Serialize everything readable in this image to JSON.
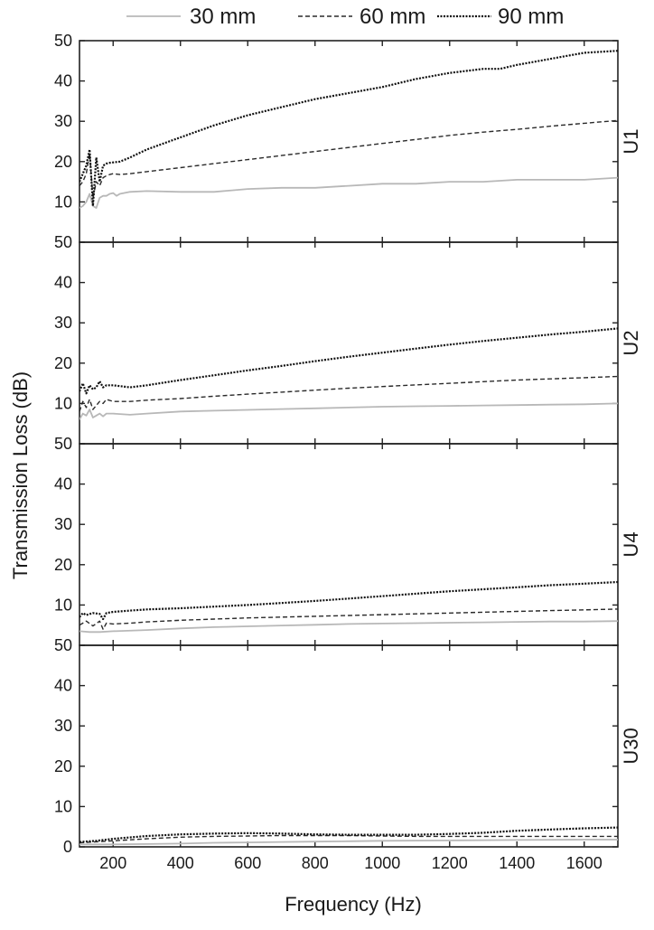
{
  "chart_data": {
    "type": "line",
    "xlabel": "Frequency (Hz)",
    "ylabel": "Transmission Loss (dB)",
    "xlim": [
      100,
      1700
    ],
    "ylim": [
      0,
      50
    ],
    "x_ticks": [
      200,
      400,
      600,
      800,
      1000,
      1200,
      1400,
      1600
    ],
    "y_ticks": [
      0,
      10,
      20,
      30,
      40,
      50
    ],
    "legend": {
      "placement": "top",
      "entries": [
        {
          "name": "30 mm",
          "style": "solid",
          "color": "#b8b8b8"
        },
        {
          "name": "60 mm",
          "style": "dashed",
          "color": "#2a2a2a"
        },
        {
          "name": "90 mm",
          "style": "dotted",
          "color": "#111111"
        }
      ]
    },
    "panels": [
      {
        "label": "U1",
        "series": [
          {
            "name": "30 mm",
            "x": [
              100,
              110,
              120,
              130,
              140,
              150,
              160,
              170,
              180,
              190,
              200,
              210,
              220,
              250,
              300,
              400,
              500,
              600,
              700,
              800,
              900,
              1000,
              1100,
              1200,
              1300,
              1400,
              1500,
              1600,
              1700
            ],
            "y": [
              8.5,
              9,
              10,
              12,
              9,
              8.5,
              11,
              11.5,
              11.5,
              12,
              12.2,
              11.5,
              12,
              12.5,
              12.7,
              12.5,
              12.5,
              13.2,
              13.5,
              13.5,
              14,
              14.5,
              14.5,
              15,
              15,
              15.5,
              15.5,
              15.5,
              16
            ]
          },
          {
            "name": "60 mm",
            "x": [
              100,
              110,
              120,
              130,
              140,
              150,
              160,
              170,
              180,
              190,
              200,
              220,
              250,
              300,
              400,
              500,
              600,
              700,
              800,
              900,
              1000,
              1100,
              1200,
              1300,
              1400,
              1500,
              1600,
              1700
            ],
            "y": [
              14,
              15,
              17,
              22,
              11,
              15,
              14,
              16,
              16.5,
              16.8,
              17,
              16.8,
              17,
              17.5,
              18.5,
              19.5,
              20.5,
              21.5,
              22.5,
              23.5,
              24.5,
              25.5,
              26.5,
              27.3,
              28,
              28.8,
              29.5,
              30.2
            ]
          },
          {
            "name": "90 mm",
            "x": [
              100,
              110,
              120,
              130,
              140,
              150,
              160,
              170,
              180,
              190,
              200,
              220,
              250,
              300,
              400,
              500,
              600,
              700,
              800,
              900,
              1000,
              1100,
              1200,
              1300,
              1350,
              1400,
              1500,
              1600,
              1700
            ],
            "y": [
              15,
              17,
              19,
              23,
              9,
              21,
              15,
              19,
              19.5,
              19.7,
              19.8,
              20,
              21,
              23,
              26,
              29,
              31.5,
              33.5,
              35.5,
              37,
              38.5,
              40.5,
              42,
              43,
              43,
              44,
              45.5,
              47,
              47.5
            ]
          }
        ]
      },
      {
        "label": "U2",
        "series": [
          {
            "name": "30 mm",
            "x": [
              100,
              110,
              120,
              130,
              140,
              150,
              160,
              170,
              180,
              200,
              250,
              300,
              400,
              500,
              600,
              700,
              800,
              900,
              1000,
              1100,
              1200,
              1300,
              1400,
              1500,
              1600,
              1700
            ],
            "y": [
              6,
              7.5,
              7,
              8.5,
              6.5,
              7,
              7.5,
              6.8,
              7.5,
              7.5,
              7.2,
              7.5,
              8,
              8.2,
              8.4,
              8.6,
              8.8,
              9,
              9.2,
              9.3,
              9.4,
              9.5,
              9.6,
              9.7,
              9.8,
              10
            ]
          },
          {
            "name": "60 mm",
            "x": [
              100,
              110,
              120,
              130,
              140,
              150,
              160,
              170,
              180,
              200,
              250,
              300,
              400,
              500,
              600,
              700,
              800,
              900,
              1000,
              1100,
              1200,
              1300,
              1400,
              1500,
              1600,
              1700
            ],
            "y": [
              8,
              10.5,
              9,
              11,
              8.5,
              9.5,
              10.5,
              10,
              11,
              10.5,
              10.5,
              10.8,
              11.2,
              11.8,
              12.3,
              12.8,
              13.3,
              13.8,
              14.2,
              14.6,
              15,
              15.4,
              15.8,
              16.1,
              16.4,
              16.7
            ]
          },
          {
            "name": "90 mm",
            "x": [
              100,
              110,
              120,
              130,
              140,
              150,
              160,
              170,
              180,
              200,
              250,
              300,
              400,
              500,
              600,
              700,
              800,
              900,
              1000,
              1100,
              1200,
              1300,
              1400,
              1500,
              1600,
              1700
            ],
            "y": [
              13,
              15,
              12.5,
              14.5,
              13.5,
              14,
              15.5,
              14,
              14.5,
              14.5,
              14,
              14.5,
              15.8,
              17,
              18.2,
              19.3,
              20.5,
              21.6,
              22.6,
              23.6,
              24.6,
              25.5,
              26.3,
              27.1,
              27.8,
              28.6
            ]
          }
        ]
      },
      {
        "label": "U4",
        "series": [
          {
            "name": "30 mm",
            "x": [
              100,
              130,
              160,
              200,
              300,
              400,
              500,
              600,
              700,
              800,
              900,
              1000,
              1100,
              1200,
              1300,
              1400,
              1500,
              1600,
              1700
            ],
            "y": [
              3.5,
              3.3,
              3.3,
              3.5,
              3.8,
              4.2,
              4.5,
              4.7,
              4.9,
              5.1,
              5.3,
              5.4,
              5.5,
              5.6,
              5.7,
              5.8,
              5.9,
              5.9,
              6
            ]
          },
          {
            "name": "60 mm",
            "x": [
              100,
              120,
              140,
              160,
              170,
              180,
              200,
              250,
              300,
              400,
              500,
              600,
              700,
              800,
              900,
              1000,
              1100,
              1200,
              1300,
              1400,
              1500,
              1600,
              1700
            ],
            "y": [
              5,
              6,
              4.8,
              6,
              4,
              5.5,
              5.3,
              5.5,
              5.8,
              6.2,
              6.5,
              6.8,
              7,
              7.2,
              7.4,
              7.6,
              7.8,
              8,
              8.2,
              8.4,
              8.6,
              8.8,
              9
            ]
          },
          {
            "name": "90 mm",
            "x": [
              100,
              110,
              120,
              140,
              160,
              170,
              180,
              200,
              250,
              300,
              400,
              500,
              600,
              700,
              800,
              900,
              1000,
              1100,
              1200,
              1300,
              1400,
              1500,
              1600,
              1700
            ],
            "y": [
              7,
              8,
              7.5,
              8,
              7.8,
              6.5,
              8,
              8.3,
              8.6,
              8.9,
              9.2,
              9.6,
              10,
              10.5,
              11,
              11.6,
              12.2,
              12.8,
              13.4,
              13.9,
              14.4,
              14.9,
              15.3,
              15.7
            ]
          }
        ]
      },
      {
        "label": "U30",
        "series": [
          {
            "name": "30 mm",
            "x": [
              100,
              200,
              300,
              400,
              500,
              600,
              700,
              800,
              900,
              1000,
              1200,
              1400,
              1600,
              1700
            ],
            "y": [
              0.6,
              0.6,
              0.7,
              0.8,
              1,
              1.1,
              1.2,
              1.3,
              1.4,
              1.5,
              1.6,
              1.7,
              1.8,
              1.8
            ]
          },
          {
            "name": "60 mm",
            "x": [
              100,
              200,
              300,
              400,
              500,
              600,
              700,
              800,
              900,
              1000,
              1100,
              1200,
              1300,
              1400,
              1500,
              1600,
              1700
            ],
            "y": [
              1,
              1.5,
              2,
              2.4,
              2.6,
              2.7,
              2.8,
              2.8,
              2.8,
              2.7,
              2.6,
              2.6,
              2.6,
              2.6,
              2.6,
              2.6,
              2.6
            ]
          },
          {
            "name": "90 mm",
            "x": [
              100,
              150,
              200,
              300,
              400,
              500,
              600,
              700,
              800,
              900,
              1000,
              1100,
              1200,
              1300,
              1400,
              1500,
              1600,
              1700
            ],
            "y": [
              1.2,
              1.5,
              2,
              2.7,
              3.1,
              3.3,
              3.4,
              3.3,
              3.1,
              3,
              3,
              3,
              3.2,
              3.5,
              4,
              4.3,
              4.6,
              4.8
            ]
          }
        ]
      }
    ]
  }
}
